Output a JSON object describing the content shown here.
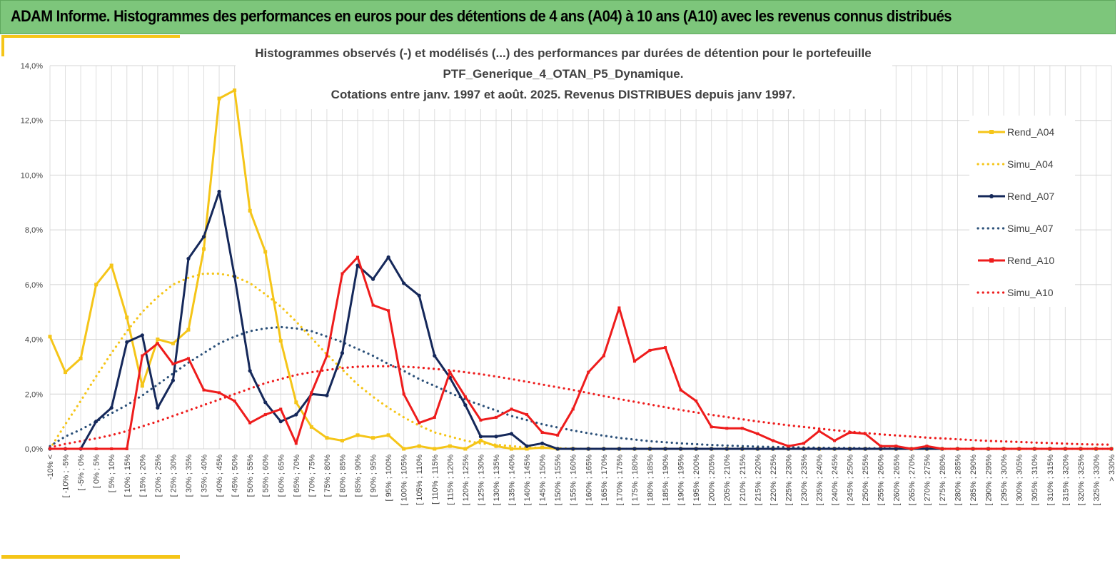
{
  "banner": {
    "title": "ADAM Informe. Histogrammes des performances en euros pour des détentions de 4 ans (A04) à 10 ans (A10) avec les revenus connus distribués"
  },
  "chart_data": {
    "type": "line",
    "title_lines": [
      "Histogrammes observés (-) et modélisés (...) des performances par durées de détention pour le portefeuille",
      "PTF_Generique_4_OTAN_P5_Dynamique.",
      "Cotations entre janv. 1997 et août. 2025. Revenus DISTRIBUES depuis janv 1997."
    ],
    "y_ticks": [
      "0,0%",
      "2,0%",
      "4,0%",
      "6,0%",
      "8,0%",
      "10,0%",
      "12,0%",
      "14,0%"
    ],
    "ylim": [
      0,
      14
    ],
    "grid": true,
    "legend_position": "right",
    "categories": [
      "-10% <",
      "[ -10% ; -5%",
      "[ -5% ; 0%",
      "[ 0% ; 5%",
      "[ 5% ; 10%",
      "[ 10% ; 15%",
      "[ 15% ; 20%",
      "[ 20% ; 25%",
      "[ 25% ; 30%",
      "[ 30% ; 35%",
      "[ 35% ; 40%",
      "[ 40% ; 45%",
      "[ 45% ; 50%",
      "[ 50% ; 55%",
      "[ 55% ; 60%",
      "[ 60% ; 65%",
      "[ 65% ; 70%",
      "[ 70% ; 75%",
      "[ 75% ; 80%",
      "[ 80% ; 85%",
      "[ 85% ; 90%",
      "[ 90% ; 95%",
      "[ 95% ; 100%",
      "[ 100% ; 105%",
      "[ 105% ; 110%",
      "[ 110% ; 115%",
      "[ 115% ; 120%",
      "[ 120% ; 125%",
      "[ 125% ; 130%",
      "[ 130% ; 135%",
      "[ 135% ; 140%",
      "[ 140% ; 145%",
      "[ 145% ; 150%",
      "[ 150% ; 155%",
      "[ 155% ; 160%",
      "[ 160% ; 165%",
      "[ 165% ; 170%",
      "[ 170% ; 175%",
      "[ 175% ; 180%",
      "[ 180% ; 185%",
      "[ 185% ; 190%",
      "[ 190% ; 195%",
      "[ 195% ; 200%",
      "[ 200% ; 205%",
      "[ 205% ; 210%",
      "[ 210% ; 215%",
      "[ 215% ; 220%",
      "[ 220% ; 225%",
      "[ 225% ; 230%",
      "[ 230% ; 235%",
      "[ 235% ; 240%",
      "[ 240% ; 245%",
      "[ 245% ; 250%",
      "[ 250% ; 255%",
      "[ 255% ; 260%",
      "[ 260% ; 265%",
      "[ 265% ; 270%",
      "[ 270% ; 275%",
      "[ 275% ; 280%",
      "[ 280% ; 285%",
      "[ 285% ; 290%",
      "[ 290% ; 295%",
      "[ 295% ; 300%",
      "[ 300% ; 305%",
      "[ 305% ; 310%",
      "[ 310% ; 315%",
      "[ 315% ; 320%",
      "[ 320% ; 325%",
      "[ 325% ; 330%",
      "> 330%"
    ],
    "series": [
      {
        "name": "Rend_A04",
        "color": "#f5c518",
        "style": "solid",
        "values": [
          4.1,
          2.8,
          3.3,
          6.0,
          6.7,
          4.8,
          2.3,
          4.0,
          3.85,
          4.35,
          7.3,
          12.8,
          13.1,
          8.7,
          7.2,
          3.95,
          1.7,
          0.8,
          0.4,
          0.3,
          0.5,
          0.4,
          0.5,
          0.0,
          0.1,
          0.0,
          0.1,
          0.0,
          0.3,
          0.1,
          0.0,
          0.0,
          0.05,
          0.0,
          0.0,
          0.0,
          0.0,
          0.0,
          0.0,
          0.0,
          0.0,
          0.0,
          0.0,
          0.0,
          0.0,
          0.0,
          0.0,
          0.0,
          0.0,
          0.0,
          0.0,
          0.0,
          0.0,
          0.0,
          0.0,
          0.0,
          0.0,
          0.0,
          0.0,
          0.0,
          0.0,
          0.0,
          0.0,
          0.0,
          0.0,
          0.0,
          0.0,
          0.0,
          0.0,
          0.0
        ]
      },
      {
        "name": "Simu_A04",
        "color": "#f5c518",
        "style": "dotted",
        "values": [
          0.0,
          0.9,
          1.75,
          2.65,
          3.5,
          4.3,
          5.0,
          5.55,
          6.0,
          6.25,
          6.4,
          6.4,
          6.3,
          6.05,
          5.65,
          5.2,
          4.65,
          4.05,
          3.45,
          2.9,
          2.35,
          1.9,
          1.5,
          1.15,
          0.85,
          0.6,
          0.45,
          0.3,
          0.2,
          0.15,
          0.1,
          0.05,
          0.04,
          0.02,
          0.01,
          0.0,
          0.0,
          0.0,
          0.0,
          0.0,
          0.0,
          0.0,
          0.0,
          0.0,
          0.0,
          0.0,
          0.0,
          0.0,
          0.0,
          0.0,
          0.0,
          0.0,
          0.0,
          0.0,
          0.0,
          0.0,
          0.0,
          0.0,
          0.0,
          0.0,
          0.0,
          0.0,
          0.0,
          0.0,
          0.0,
          0.0,
          0.0,
          0.0,
          0.0,
          0.0
        ]
      },
      {
        "name": "Rend_A07",
        "color": "#15285a",
        "style": "solid",
        "values": [
          0.0,
          0.0,
          0.0,
          1.0,
          1.5,
          3.9,
          4.15,
          1.5,
          2.5,
          6.95,
          7.75,
          9.4,
          6.3,
          2.85,
          1.7,
          1.0,
          1.25,
          2.0,
          1.95,
          3.5,
          6.7,
          6.2,
          7.0,
          6.05,
          5.6,
          3.4,
          2.6,
          1.6,
          0.45,
          0.45,
          0.55,
          0.1,
          0.2,
          0.0,
          0.0,
          0.0,
          0.0,
          0.0,
          0.0,
          0.0,
          0.0,
          0.0,
          0.0,
          0.0,
          0.0,
          0.0,
          0.0,
          0.0,
          0.0,
          0.0,
          0.0,
          0.0,
          0.0,
          0.0,
          0.0,
          0.0,
          0.0,
          0.0,
          0.0,
          0.0,
          0.0,
          0.0,
          0.0,
          0.0,
          0.0,
          0.0,
          0.0,
          0.0,
          0.0,
          0.0
        ]
      },
      {
        "name": "Simu_A07",
        "color": "#2a4f78",
        "style": "dotted",
        "values": [
          0.1,
          0.45,
          0.7,
          1.0,
          1.3,
          1.6,
          1.95,
          2.35,
          2.75,
          3.15,
          3.5,
          3.85,
          4.1,
          4.3,
          4.4,
          4.45,
          4.4,
          4.3,
          4.1,
          3.9,
          3.65,
          3.4,
          3.1,
          2.85,
          2.55,
          2.3,
          2.05,
          1.8,
          1.6,
          1.4,
          1.2,
          1.05,
          0.9,
          0.78,
          0.67,
          0.57,
          0.48,
          0.4,
          0.34,
          0.28,
          0.24,
          0.2,
          0.17,
          0.14,
          0.12,
          0.1,
          0.08,
          0.07,
          0.06,
          0.05,
          0.04,
          0.03,
          0.03,
          0.02,
          0.02,
          0.01,
          0.01,
          0.01,
          0.0,
          0.0,
          0.0,
          0.0,
          0.0,
          0.0,
          0.0,
          0.0,
          0.0,
          0.0,
          0.0,
          0.0
        ]
      },
      {
        "name": "Rend_A10",
        "color": "#ee1c1c",
        "style": "solid",
        "values": [
          0.0,
          0.0,
          0.0,
          0.0,
          0.0,
          0.0,
          3.4,
          3.85,
          3.1,
          3.3,
          2.15,
          2.05,
          1.75,
          0.95,
          1.25,
          1.45,
          0.2,
          2.05,
          3.4,
          6.4,
          7.0,
          5.25,
          5.05,
          2.0,
          0.95,
          1.15,
          2.8,
          1.9,
          1.05,
          1.15,
          1.45,
          1.25,
          0.6,
          0.5,
          1.45,
          2.8,
          3.4,
          5.15,
          3.2,
          3.6,
          3.7,
          2.15,
          1.75,
          0.8,
          0.75,
          0.75,
          0.55,
          0.3,
          0.1,
          0.2,
          0.65,
          0.3,
          0.6,
          0.55,
          0.1,
          0.1,
          0.0,
          0.1,
          0.0,
          0.0,
          0.0,
          0.0,
          0.0,
          0.0,
          0.0,
          0.0,
          0.0,
          0.0,
          0.0,
          0.0
        ]
      },
      {
        "name": "Simu_A10",
        "color": "#ee1c1c",
        "style": "dotted",
        "values": [
          0.05,
          0.18,
          0.28,
          0.38,
          0.5,
          0.65,
          0.82,
          1.0,
          1.2,
          1.4,
          1.6,
          1.8,
          2.0,
          2.2,
          2.4,
          2.55,
          2.7,
          2.8,
          2.88,
          2.95,
          3.0,
          3.02,
          3.02,
          3.0,
          2.97,
          2.92,
          2.87,
          2.8,
          2.73,
          2.64,
          2.55,
          2.45,
          2.35,
          2.25,
          2.15,
          2.04,
          1.93,
          1.82,
          1.72,
          1.62,
          1.52,
          1.42,
          1.33,
          1.24,
          1.16,
          1.08,
          1.0,
          0.93,
          0.86,
          0.8,
          0.74,
          0.68,
          0.63,
          0.58,
          0.53,
          0.49,
          0.45,
          0.41,
          0.38,
          0.35,
          0.32,
          0.29,
          0.27,
          0.25,
          0.23,
          0.21,
          0.19,
          0.17,
          0.16,
          0.15
        ]
      }
    ]
  }
}
